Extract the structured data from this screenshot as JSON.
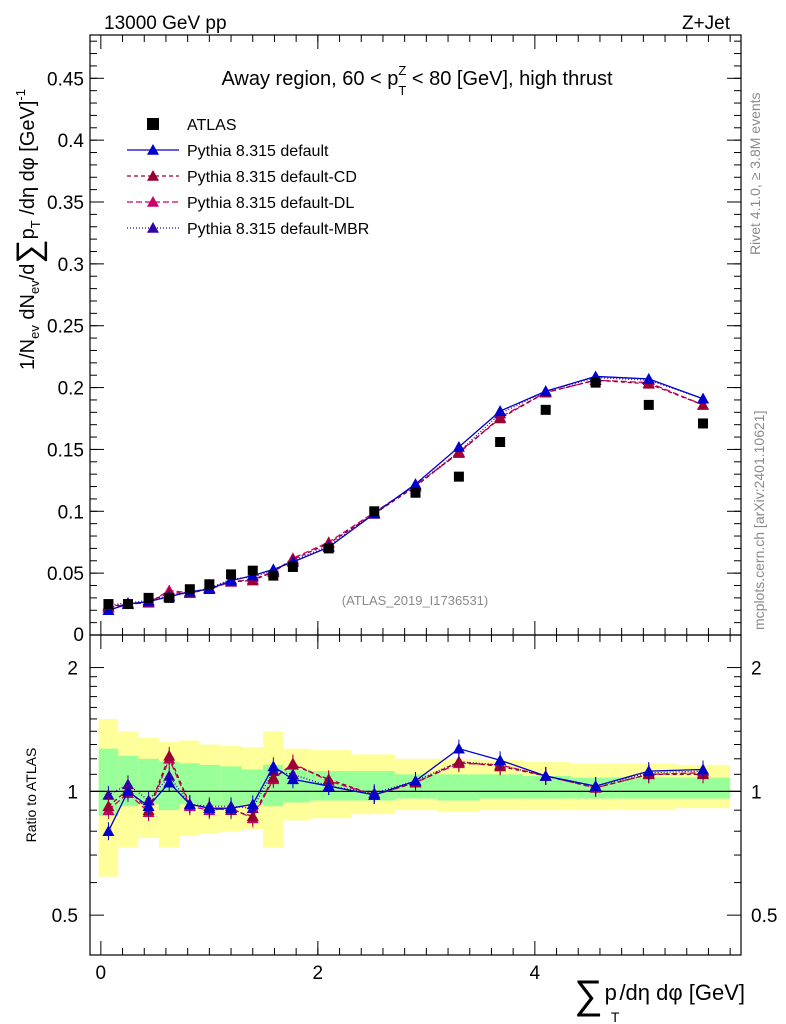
{
  "header": {
    "left": "13000 GeV pp",
    "right": "Z+Jet"
  },
  "side": {
    "rivet": "Rivet 4.1.0, ≥ 3.8M events",
    "mcplots": "mcplots.cern.ch [arXiv:2401.10621]"
  },
  "plot": {
    "title_prefix": "Away region, 60 < p",
    "title_sup": "Z",
    "title_sub": "T",
    "title_suffix": " < 80 [GeV], high thrust",
    "analysis_id": "(ATLAS_2019_I1736531)",
    "ylabel_parts": [
      "1/N",
      "ev",
      " dN",
      "ev",
      "/d",
      "∑",
      "p",
      "T",
      " /dη dφ  [GeV]",
      "-1"
    ],
    "ratio_ylabel": "Ratio to ATLAS",
    "xlabel_parts": [
      "∑",
      "p",
      "T",
      "/dη dφ [GeV]"
    ]
  },
  "legend": [
    {
      "label": "ATLAS",
      "color": "#000000",
      "marker": "square",
      "dash": ""
    },
    {
      "label": "Pythia 8.315 default",
      "color": "#0000cc",
      "marker": "triangle",
      "dash": ""
    },
    {
      "label": "Pythia 8.315 default-CD",
      "color": "#990033",
      "marker": "triangle",
      "dash": "4,3"
    },
    {
      "label": "Pythia 8.315 default-DL",
      "color": "#cc0066",
      "marker": "triangle",
      "dash": "6,3"
    },
    {
      "label": "Pythia 8.315 default-MBR",
      "color": "#3300aa",
      "marker": "triangle",
      "dash": "1,2"
    }
  ],
  "chart_data": {
    "type": "scatter",
    "x": [
      0.07,
      0.25,
      0.44,
      0.63,
      0.82,
      1.0,
      1.2,
      1.4,
      1.59,
      1.77,
      2.1,
      2.52,
      2.9,
      3.3,
      3.68,
      4.1,
      4.56,
      5.05,
      5.55
    ],
    "xlim": [
      -0.1,
      5.9
    ],
    "ylim": [
      0,
      0.485
    ],
    "xticks": [
      0,
      2,
      4
    ],
    "xtick_labels": [
      "0",
      "2",
      "4"
    ],
    "yticks": [
      0.05,
      0.1,
      0.15,
      0.2,
      0.25,
      0.3,
      0.35,
      0.4,
      0.45
    ],
    "ytick_labels": [
      "0.05",
      "0.1",
      "0.15",
      "0.2",
      "0.25",
      "0.3",
      "0.35",
      "0.4",
      "0.45"
    ],
    "ylow_label": "0",
    "series": [
      {
        "name": "ATLAS",
        "values": [
          0.025,
          0.025,
          0.03,
          0.03,
          0.037,
          0.041,
          0.049,
          0.052,
          0.048,
          0.055,
          0.07,
          0.1,
          0.115,
          0.128,
          0.156,
          0.182,
          0.204,
          0.186,
          0.171
        ]
      },
      {
        "name": "Pythia 8.315 default",
        "values": [
          0.02,
          0.025,
          0.027,
          0.031,
          0.035,
          0.037,
          0.044,
          0.048,
          0.053,
          0.059,
          0.071,
          0.098,
          0.122,
          0.152,
          0.181,
          0.197,
          0.209,
          0.207,
          0.191
        ]
      },
      {
        "name": "Pythia 8.315 default-CD",
        "values": [
          0.023,
          0.025,
          0.027,
          0.034,
          0.034,
          0.038,
          0.043,
          0.044,
          0.051,
          0.061,
          0.074,
          0.098,
          0.12,
          0.148,
          0.175,
          0.196,
          0.206,
          0.203,
          0.186
        ]
      },
      {
        "name": "Pythia 8.315 default-DL",
        "values": [
          0.022,
          0.025,
          0.026,
          0.036,
          0.034,
          0.037,
          0.043,
          0.045,
          0.051,
          0.062,
          0.075,
          0.099,
          0.121,
          0.147,
          0.176,
          0.196,
          0.206,
          0.204,
          0.186
        ]
      },
      {
        "name": "Pythia 8.315 default-MBR",
        "values": [
          0.024,
          0.026,
          0.028,
          0.032,
          0.034,
          0.038,
          0.045,
          0.047,
          0.052,
          0.06,
          0.072,
          0.099,
          0.121,
          0.148,
          0.179,
          0.197,
          0.208,
          0.206,
          0.191
        ]
      }
    ],
    "ratio": {
      "ylim": [
        0.4,
        2.4
      ],
      "yticks": [
        0.5,
        1,
        2
      ],
      "ytick_labels": [
        "0.5",
        "1",
        "2"
      ],
      "band_inner": [
        [
          0.87,
          1.27
        ],
        [
          0.92,
          1.22
        ],
        [
          0.93,
          1.2
        ],
        [
          0.9,
          1.18
        ],
        [
          0.93,
          1.17
        ],
        [
          0.92,
          1.16
        ],
        [
          0.92,
          1.15
        ],
        [
          0.93,
          1.13
        ],
        [
          0.92,
          1.16
        ],
        [
          0.94,
          1.13
        ],
        [
          0.95,
          1.12
        ],
        [
          0.95,
          1.12
        ],
        [
          0.96,
          1.1
        ],
        [
          0.95,
          1.1
        ],
        [
          0.96,
          1.1
        ],
        [
          0.96,
          1.09
        ],
        [
          0.96,
          1.08
        ],
        [
          0.96,
          1.08
        ],
        [
          0.96,
          1.08
        ]
      ],
      "band_outer": [
        [
          0.62,
          1.5
        ],
        [
          0.73,
          1.4
        ],
        [
          0.77,
          1.35
        ],
        [
          0.73,
          1.32
        ],
        [
          0.78,
          1.33
        ],
        [
          0.79,
          1.3
        ],
        [
          0.8,
          1.29
        ],
        [
          0.81,
          1.28
        ],
        [
          0.73,
          1.4
        ],
        [
          0.85,
          1.27
        ],
        [
          0.86,
          1.26
        ],
        [
          0.88,
          1.23
        ],
        [
          0.9,
          1.2
        ],
        [
          0.89,
          1.2
        ],
        [
          0.9,
          1.19
        ],
        [
          0.9,
          1.18
        ],
        [
          0.9,
          1.17
        ],
        [
          0.9,
          1.17
        ],
        [
          0.91,
          1.16
        ]
      ],
      "series": [
        {
          "name": "Pythia 8.315 default",
          "values": [
            0.8,
            1.0,
            0.92,
            1.05,
            0.93,
            0.91,
            0.91,
            0.93,
            1.15,
            1.07,
            1.03,
            0.98,
            1.06,
            1.27,
            1.19,
            1.09,
            1.03,
            1.12,
            1.13
          ]
        },
        {
          "name": "Pythia 8.315 default-CD",
          "values": [
            0.92,
            1.01,
            0.9,
            1.22,
            0.93,
            0.91,
            0.9,
            0.87,
            1.08,
            1.16,
            1.07,
            0.98,
            1.05,
            1.18,
            1.15,
            1.09,
            1.02,
            1.1,
            1.1
          ]
        },
        {
          "name": "Pythia 8.315 default-DL",
          "values": [
            0.9,
            0.99,
            0.89,
            1.2,
            0.92,
            0.9,
            0.91,
            0.86,
            1.07,
            1.17,
            1.06,
            0.98,
            1.05,
            1.17,
            1.16,
            1.09,
            1.02,
            1.1,
            1.11
          ]
        },
        {
          "name": "Pythia 8.315 default-MBR",
          "values": [
            0.98,
            1.04,
            0.95,
            1.09,
            0.93,
            0.92,
            0.92,
            0.91,
            1.12,
            1.1,
            1.03,
            0.99,
            1.06,
            1.18,
            1.16,
            1.09,
            1.03,
            1.11,
            1.12
          ]
        }
      ]
    }
  }
}
